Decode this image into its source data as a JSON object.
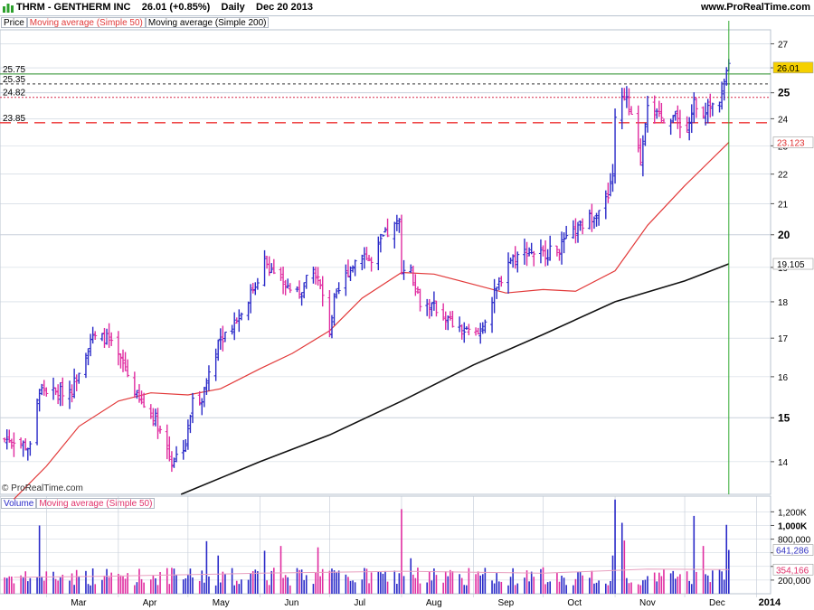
{
  "header": {
    "symbol": "THRM - GENTHERM INC",
    "last": "26.01 (+0.85%)",
    "period": "Daily",
    "date": "Dec 20 2013",
    "brand": "www.ProRealTime.com"
  },
  "price_panel": {
    "legend": [
      "Price",
      "Moving average (Simple 50)",
      "Moving average (Simple 200)"
    ],
    "watermark": "© ProRealTime.com",
    "hlines": [
      {
        "label": "25.75",
        "value": 25.75,
        "color": "#228b22",
        "style": "solid"
      },
      {
        "label": "25.35",
        "value": 25.35,
        "color": "#333333",
        "style": "dashed"
      },
      {
        "label": "24.82",
        "value": 24.82,
        "color": "#d6284a",
        "style": "dotted"
      },
      {
        "label": "23.85",
        "value": 23.85,
        "color": "#ee3333",
        "style": "longdash"
      }
    ],
    "value_tags": [
      {
        "label": "26.01",
        "value": 26.01,
        "bg": "#f5d000",
        "fg": "#000000"
      },
      {
        "label": "23.123",
        "value": 23.123,
        "bg": "#ffffff",
        "fg": "#e03030"
      },
      {
        "label": "19.105",
        "value": 19.105,
        "bg": "#ffffff",
        "fg": "#000000"
      }
    ]
  },
  "volume_panel": {
    "legend": [
      "Volume",
      "Moving average (Simple 50)"
    ],
    "value_tags": [
      {
        "label": "641,286",
        "value": 641286,
        "fg": "#3030c0"
      },
      {
        "label": "354,166",
        "value": 354166,
        "fg": "#e0306a"
      }
    ]
  },
  "colors": {
    "up": "#2a2ac8",
    "down": "#e02ca0",
    "ma50": "#e23a3a",
    "ma200": "#111111",
    "grid": "#c8d0dc",
    "vline": "#33aa33"
  },
  "chart_data": {
    "type": "ohlc",
    "series_name": "THRM",
    "y_axis": {
      "scale": "log",
      "range": [
        13.3,
        27.6
      ],
      "ticks": [
        14,
        15,
        16,
        17,
        18,
        19,
        20,
        21,
        22,
        23,
        24,
        25,
        26,
        27
      ],
      "bold_ticks": [
        15,
        20,
        25
      ]
    },
    "x_axis": {
      "labels": [
        "Mar",
        "Apr",
        "May",
        "Jun",
        "Jul",
        "Aug",
        "Sep",
        "Oct",
        "Nov",
        "Dec",
        "2014"
      ]
    },
    "anchors": [
      {
        "date": "2013-02-15",
        "close": 14.5
      },
      {
        "date": "2013-02-22",
        "close": 14.3
      },
      {
        "date": "2013-02-26",
        "close": 15.7
      },
      {
        "date": "2013-03-05",
        "close": 15.6
      },
      {
        "date": "2013-03-12",
        "close": 15.7
      },
      {
        "date": "2013-03-20",
        "close": 17.0
      },
      {
        "date": "2013-03-27",
        "close": 17.0
      },
      {
        "date": "2013-04-03",
        "close": 16.3
      },
      {
        "date": "2013-04-10",
        "close": 15.4
      },
      {
        "date": "2013-04-17",
        "close": 15.0
      },
      {
        "date": "2013-04-24",
        "close": 14.0
      },
      {
        "date": "2013-04-30",
        "close": 14.4
      },
      {
        "date": "2013-05-03",
        "close": 15.4
      },
      {
        "date": "2013-05-07",
        "close": 15.5
      },
      {
        "date": "2013-05-09",
        "close": 15.9
      },
      {
        "date": "2013-05-14",
        "close": 16.9
      },
      {
        "date": "2013-05-24",
        "close": 17.7
      },
      {
        "date": "2013-05-30",
        "close": 18.5
      },
      {
        "date": "2013-06-03",
        "close": 19.2
      },
      {
        "date": "2013-06-10",
        "close": 18.6
      },
      {
        "date": "2013-06-17",
        "close": 18.2
      },
      {
        "date": "2013-06-24",
        "close": 18.9
      },
      {
        "date": "2013-06-27",
        "close": 18.4
      },
      {
        "date": "2013-07-01",
        "close": 17.2
      },
      {
        "date": "2013-07-03",
        "close": 18.0
      },
      {
        "date": "2013-07-09",
        "close": 18.9
      },
      {
        "date": "2013-07-15",
        "close": 19.5
      },
      {
        "date": "2013-07-19",
        "close": 19.1
      },
      {
        "date": "2013-07-24",
        "close": 19.9
      },
      {
        "date": "2013-07-31",
        "close": 20.4
      },
      {
        "date": "2013-08-01",
        "close": 19.0
      },
      {
        "date": "2013-08-05",
        "close": 18.9
      },
      {
        "date": "2013-08-09",
        "close": 18.0
      },
      {
        "date": "2013-08-16",
        "close": 17.8
      },
      {
        "date": "2013-08-26",
        "close": 17.2
      },
      {
        "date": "2013-09-03",
        "close": 17.1
      },
      {
        "date": "2013-09-09",
        "close": 18.0
      },
      {
        "date": "2013-09-16",
        "close": 19.2
      },
      {
        "date": "2013-09-24",
        "close": 19.5
      },
      {
        "date": "2013-10-01",
        "close": 19.4
      },
      {
        "date": "2013-10-08",
        "close": 19.6
      },
      {
        "date": "2013-10-15",
        "close": 20.1
      },
      {
        "date": "2013-10-22",
        "close": 20.6
      },
      {
        "date": "2013-10-29",
        "close": 21.2
      },
      {
        "date": "2013-10-31",
        "close": 22.0
      },
      {
        "date": "2013-11-01",
        "close": 24.0
      },
      {
        "date": "2013-11-05",
        "close": 25.0
      },
      {
        "date": "2013-11-08",
        "close": 24.0
      },
      {
        "date": "2013-11-12",
        "close": 22.5
      },
      {
        "date": "2013-11-15",
        "close": 24.7
      },
      {
        "date": "2013-11-20",
        "close": 24.0
      },
      {
        "date": "2013-11-27",
        "close": 24.1
      },
      {
        "date": "2013-12-02",
        "close": 23.5
      },
      {
        "date": "2013-12-05",
        "close": 24.6
      },
      {
        "date": "2013-12-09",
        "close": 24.3
      },
      {
        "date": "2013-12-13",
        "close": 24.5
      },
      {
        "date": "2013-12-16",
        "close": 24.8
      },
      {
        "date": "2013-12-18",
        "close": 25.4
      },
      {
        "date": "2013-12-20",
        "close": 26.01
      }
    ],
    "ma50_points": [
      {
        "date": "2013-02-15",
        "value": 13.2
      },
      {
        "date": "2013-03-01",
        "value": 13.9
      },
      {
        "date": "2013-03-15",
        "value": 14.8
      },
      {
        "date": "2013-04-01",
        "value": 15.4
      },
      {
        "date": "2013-04-15",
        "value": 15.6
      },
      {
        "date": "2013-05-01",
        "value": 15.55
      },
      {
        "date": "2013-05-15",
        "value": 15.7
      },
      {
        "date": "2013-06-01",
        "value": 16.2
      },
      {
        "date": "2013-06-15",
        "value": 16.6
      },
      {
        "date": "2013-07-01",
        "value": 17.2
      },
      {
        "date": "2013-07-15",
        "value": 18.1
      },
      {
        "date": "2013-08-01",
        "value": 18.85
      },
      {
        "date": "2013-08-15",
        "value": 18.8
      },
      {
        "date": "2013-09-01",
        "value": 18.5
      },
      {
        "date": "2013-09-15",
        "value": 18.25
      },
      {
        "date": "2013-10-01",
        "value": 18.35
      },
      {
        "date": "2013-10-15",
        "value": 18.3
      },
      {
        "date": "2013-11-01",
        "value": 18.9
      },
      {
        "date": "2013-11-15",
        "value": 20.3
      },
      {
        "date": "2013-12-01",
        "value": 21.6
      },
      {
        "date": "2013-12-20",
        "value": 23.123
      }
    ],
    "ma200_points": [
      {
        "date": "2013-04-28",
        "value": 13.3
      },
      {
        "date": "2013-06-01",
        "value": 14.0
      },
      {
        "date": "2013-07-01",
        "value": 14.6
      },
      {
        "date": "2013-08-01",
        "value": 15.4
      },
      {
        "date": "2013-09-01",
        "value": 16.3
      },
      {
        "date": "2013-10-01",
        "value": 17.1
      },
      {
        "date": "2013-11-01",
        "value": 18.0
      },
      {
        "date": "2013-12-01",
        "value": 18.6
      },
      {
        "date": "2013-12-20",
        "value": 19.105
      }
    ],
    "volume_axis": {
      "range": [
        0,
        1430000
      ],
      "ticks": [
        200000,
        400000,
        600000,
        800000,
        1000000,
        1200000
      ],
      "tick_labels": [
        "200,000",
        "",
        "",
        "800,000",
        "1,000K",
        "1,200K"
      ]
    },
    "volume_spikes": [
      {
        "date": "2013-02-26",
        "volume": 1000000
      },
      {
        "date": "2013-05-09",
        "volume": 770000
      },
      {
        "date": "2013-05-14",
        "volume": 560000
      },
      {
        "date": "2013-06-03",
        "volume": 630000
      },
      {
        "date": "2013-06-10",
        "volume": 700000
      },
      {
        "date": "2013-06-26",
        "volume": 680000
      },
      {
        "date": "2013-08-01",
        "volume": 1240000
      },
      {
        "date": "2013-08-05",
        "volume": 520000
      },
      {
        "date": "2013-10-31",
        "volume": 560000
      },
      {
        "date": "2013-11-01",
        "volume": 1380000
      },
      {
        "date": "2013-11-04",
        "volume": 1040000
      },
      {
        "date": "2013-11-05",
        "volume": 780000
      },
      {
        "date": "2013-12-05",
        "volume": 1140000
      },
      {
        "date": "2013-12-09",
        "volume": 700000
      },
      {
        "date": "2013-12-19",
        "volume": 1010000
      },
      {
        "date": "2013-12-20",
        "volume": 641286
      }
    ],
    "volume_baseline": 300000,
    "volume_ma50_points": [
      {
        "date": "2013-02-15",
        "value": 240000
      },
      {
        "date": "2013-04-01",
        "value": 260000
      },
      {
        "date": "2013-06-01",
        "value": 300000
      },
      {
        "date": "2013-08-01",
        "value": 330000
      },
      {
        "date": "2013-10-01",
        "value": 300000
      },
      {
        "date": "2013-11-15",
        "value": 360000
      },
      {
        "date": "2013-12-20",
        "value": 354166
      }
    ]
  }
}
